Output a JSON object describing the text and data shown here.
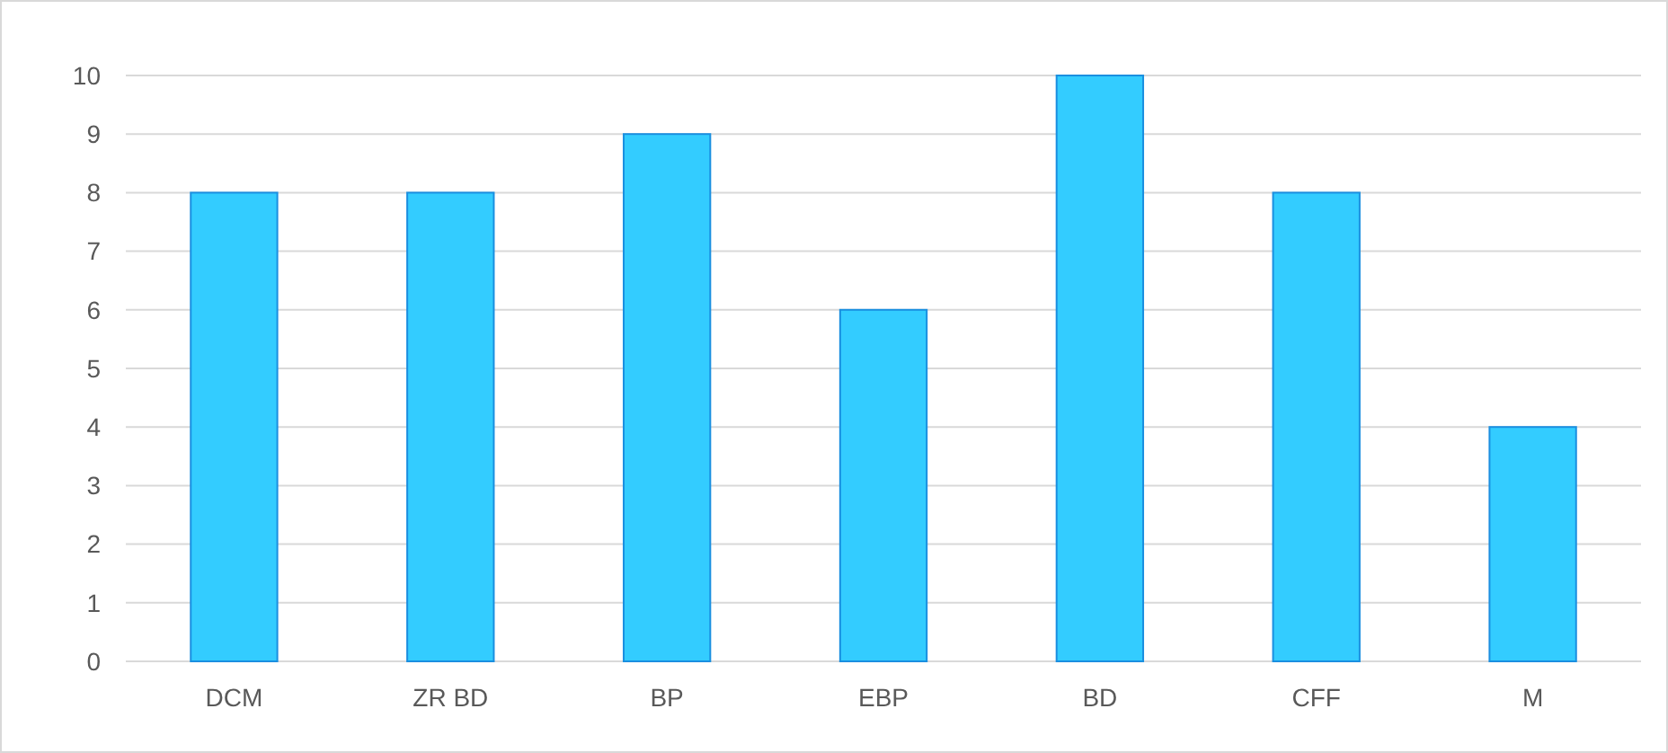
{
  "chart_data": {
    "type": "bar",
    "categories": [
      "DCM",
      "ZR BD",
      "BP",
      "EBP",
      "BD",
      "CFF",
      "M"
    ],
    "values": [
      8,
      8,
      9,
      6,
      10,
      8,
      4
    ],
    "color": "#33ccff",
    "ylim": [
      0,
      10
    ],
    "yticks": [
      0,
      1,
      2,
      3,
      4,
      5,
      6,
      7,
      8,
      9,
      10
    ],
    "grid": "y"
  }
}
